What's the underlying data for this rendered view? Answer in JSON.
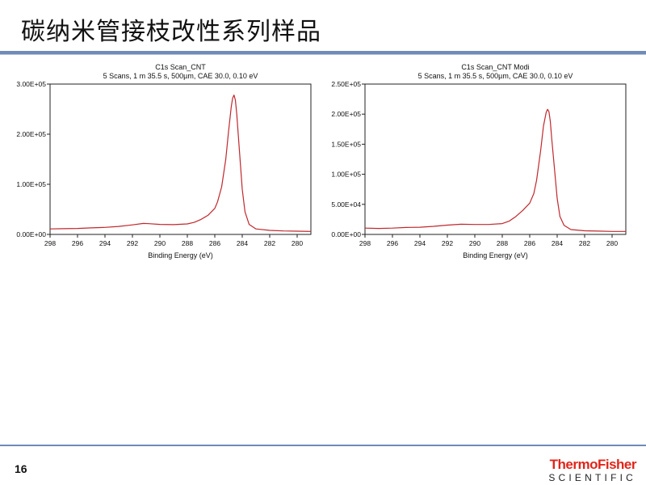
{
  "slide": {
    "title": "碳纳米管接枝改性系列样品",
    "page_number": "16",
    "brand_line1": "ThermoFisher",
    "brand_line2": "SCIENTIFIC"
  },
  "chart_data": [
    {
      "type": "line",
      "title": "C1s Scan_CNT",
      "subtitle": "5 Scans,  1 m 35.5 s,  500µm,  CAE 30.0,  0.10 eV",
      "xlabel": "Binding Energy (eV)",
      "ylabel": "",
      "xlim": [
        298,
        279
      ],
      "ylim": [
        0,
        300000
      ],
      "x_ticks": [
        "298",
        "296",
        "294",
        "292",
        "290",
        "288",
        "286",
        "284",
        "282",
        "280"
      ],
      "x_tick_values": [
        298,
        296,
        294,
        292,
        290,
        288,
        286,
        284,
        282,
        280
      ],
      "y_ticks": [
        "0.00E+00",
        "1.00E+05",
        "2.00E+05",
        "3.00E+05"
      ],
      "y_tick_values": [
        0,
        100000,
        200000,
        300000
      ],
      "line_color": "#c0282d",
      "grid": false,
      "series": [
        {
          "x": [
            298,
            297,
            296,
            295,
            294,
            293,
            292,
            291.2,
            290.8,
            290,
            289,
            288,
            287.5,
            287,
            286.5,
            286,
            285.8,
            285.5,
            285.2,
            285,
            284.8,
            284.7,
            284.6,
            284.5,
            284.4,
            284.2,
            284,
            283.8,
            283.5,
            283,
            282,
            281,
            280,
            279
          ],
          "y": [
            11000,
            11500,
            12000,
            13000,
            14000,
            16000,
            19000,
            22000,
            21500,
            20000,
            19500,
            21000,
            24000,
            30000,
            38000,
            52000,
            65000,
            95000,
            150000,
            205000,
            255000,
            272000,
            278000,
            268000,
            240000,
            165000,
            90000,
            45000,
            20000,
            11000,
            8000,
            7000,
            6500,
            6000
          ]
        }
      ]
    },
    {
      "type": "line",
      "title": "C1s Scan_CNT Modi",
      "subtitle": "5 Scans,  1 m 35.5 s,  500µm,  CAE 30.0,  0.10 eV",
      "xlabel": "Binding Energy (eV)",
      "ylabel": "",
      "xlim": [
        298,
        279
      ],
      "ylim": [
        0,
        250000
      ],
      "x_ticks": [
        "298",
        "296",
        "294",
        "292",
        "290",
        "288",
        "286",
        "284",
        "282",
        "280"
      ],
      "x_tick_values": [
        298,
        296,
        294,
        292,
        290,
        288,
        286,
        284,
        282,
        280
      ],
      "y_ticks": [
        "0.00E+00",
        "5.00E+04",
        "1.00E+05",
        "1.50E+05",
        "2.00E+05",
        "2.50E+05"
      ],
      "y_tick_values": [
        0,
        50000,
        100000,
        150000,
        200000,
        250000
      ],
      "line_color": "#c0282d",
      "grid": false,
      "series": [
        {
          "x": [
            298,
            297,
            296,
            295,
            294,
            293,
            292,
            291,
            290,
            289,
            288,
            287.5,
            287,
            286.5,
            286,
            285.7,
            285.5,
            285.2,
            285,
            284.8,
            284.7,
            284.6,
            284.5,
            284.4,
            284.2,
            284,
            283.8,
            283.5,
            283,
            282,
            281,
            280,
            279
          ],
          "y": [
            10500,
            10000,
            10500,
            11500,
            12000,
            13500,
            15500,
            17000,
            16500,
            16500,
            18000,
            22000,
            30000,
            40000,
            52000,
            68000,
            90000,
            140000,
            180000,
            203000,
            208000,
            204000,
            188000,
            160000,
            110000,
            60000,
            30000,
            15000,
            8000,
            6000,
            5500,
            5000,
            5000
          ]
        }
      ]
    }
  ]
}
